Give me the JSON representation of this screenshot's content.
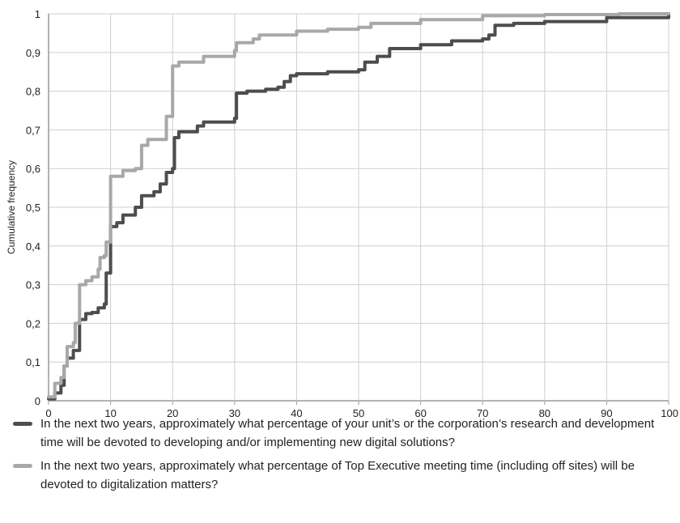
{
  "chart_data": {
    "type": "line",
    "ylabel": "Cumulative frequency",
    "xlim": [
      0,
      100
    ],
    "ylim": [
      0,
      1
    ],
    "x_ticks": [
      "0",
      "10",
      "20",
      "30",
      "40",
      "50",
      "60",
      "70",
      "80",
      "90",
      "100"
    ],
    "y_ticks": [
      "0",
      "0,1",
      "0,2",
      "0,3",
      "0,4",
      "0,5",
      "0,6",
      "0,7",
      "0,8",
      "0,9",
      "1"
    ],
    "grid": true,
    "legend_position": "bottom",
    "series": [
      {
        "name": "In the next two years, approximately what percentage of your unit’s or the corporation’s research and development time will be devoted to developing and/or implementing new digital solutions?",
        "color": "#4d4d4d",
        "step": true,
        "points": [
          [
            0,
            0.005
          ],
          [
            1,
            0.02
          ],
          [
            2,
            0.04
          ],
          [
            2.5,
            0.09
          ],
          [
            3,
            0.11
          ],
          [
            4,
            0.13
          ],
          [
            5,
            0.21
          ],
          [
            6,
            0.225
          ],
          [
            7,
            0.228
          ],
          [
            8,
            0.24
          ],
          [
            9,
            0.25
          ],
          [
            9.3,
            0.33
          ],
          [
            10,
            0.33
          ],
          [
            10,
            0.45
          ],
          [
            11,
            0.46
          ],
          [
            12,
            0.48
          ],
          [
            14,
            0.5
          ],
          [
            15,
            0.53
          ],
          [
            17,
            0.54
          ],
          [
            18,
            0.56
          ],
          [
            19,
            0.59
          ],
          [
            20,
            0.6
          ],
          [
            20.3,
            0.68
          ],
          [
            21,
            0.695
          ],
          [
            24,
            0.71
          ],
          [
            25,
            0.72
          ],
          [
            30,
            0.73
          ],
          [
            30.3,
            0.795
          ],
          [
            32,
            0.8
          ],
          [
            35,
            0.805
          ],
          [
            37,
            0.81
          ],
          [
            38,
            0.825
          ],
          [
            39,
            0.84
          ],
          [
            40,
            0.845
          ],
          [
            45,
            0.85
          ],
          [
            50,
            0.855
          ],
          [
            51,
            0.875
          ],
          [
            53,
            0.89
          ],
          [
            55,
            0.91
          ],
          [
            60,
            0.92
          ],
          [
            65,
            0.93
          ],
          [
            70,
            0.935
          ],
          [
            71,
            0.945
          ],
          [
            72,
            0.97
          ],
          [
            75,
            0.975
          ],
          [
            80,
            0.98
          ],
          [
            90,
            0.99
          ],
          [
            100,
            1
          ]
        ]
      },
      {
        "name": "In the next two years, approximately what percentage of Top Executive meeting time (including off sites) will be devoted to digitalization matters?",
        "color": "#a8a8a8",
        "step": true,
        "points": [
          [
            0,
            0.01
          ],
          [
            1,
            0.045
          ],
          [
            2,
            0.06
          ],
          [
            2.5,
            0.09
          ],
          [
            3,
            0.14
          ],
          [
            4,
            0.15
          ],
          [
            4.3,
            0.2
          ],
          [
            5,
            0.21
          ],
          [
            5,
            0.3
          ],
          [
            6,
            0.31
          ],
          [
            7,
            0.32
          ],
          [
            8,
            0.34
          ],
          [
            8.3,
            0.37
          ],
          [
            9,
            0.375
          ],
          [
            9.3,
            0.41
          ],
          [
            10,
            0.42
          ],
          [
            10,
            0.58
          ],
          [
            12,
            0.595
          ],
          [
            14,
            0.6
          ],
          [
            15,
            0.61
          ],
          [
            15,
            0.66
          ],
          [
            16,
            0.675
          ],
          [
            19,
            0.685
          ],
          [
            19,
            0.735
          ],
          [
            20,
            0.74
          ],
          [
            20,
            0.865
          ],
          [
            21,
            0.875
          ],
          [
            25,
            0.89
          ],
          [
            30,
            0.905
          ],
          [
            30.3,
            0.925
          ],
          [
            33,
            0.935
          ],
          [
            34,
            0.945
          ],
          [
            40,
            0.955
          ],
          [
            45,
            0.96
          ],
          [
            50,
            0.965
          ],
          [
            52,
            0.975
          ],
          [
            60,
            0.985
          ],
          [
            70,
            0.995
          ],
          [
            80,
            0.998
          ],
          [
            92,
            1
          ],
          [
            100,
            1
          ]
        ]
      }
    ]
  }
}
